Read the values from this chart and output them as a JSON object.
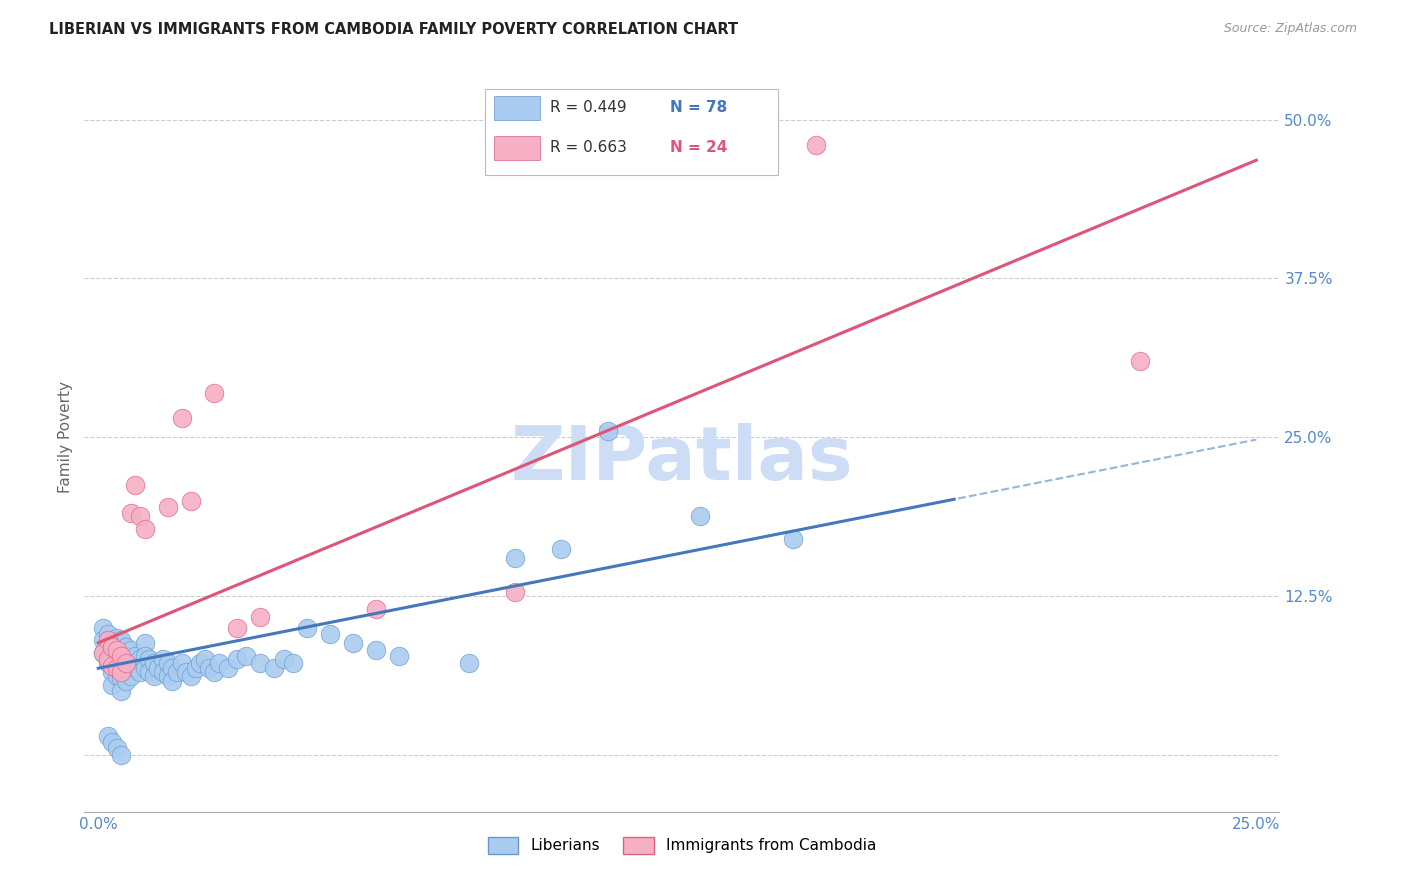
{
  "title": "LIBERIAN VS IMMIGRANTS FROM CAMBODIA FAMILY POVERTY CORRELATION CHART",
  "source_text": "Source: ZipAtlas.com",
  "ylabel": "Family Poverty",
  "xlim": [
    -0.003,
    0.255
  ],
  "ylim": [
    -0.045,
    0.545
  ],
  "xticks": [
    0.0,
    0.05,
    0.1,
    0.15,
    0.2,
    0.25
  ],
  "xticklabels": [
    "0.0%",
    "",
    "",
    "",
    "",
    "25.0%"
  ],
  "yticks": [
    0.0,
    0.125,
    0.25,
    0.375,
    0.5
  ],
  "yticklabels": [
    "",
    "12.5%",
    "25.0%",
    "37.5%",
    "50.0%"
  ],
  "blue_color": "#aaccf0",
  "pink_color": "#f5b0c5",
  "blue_edge_color": "#6699cc",
  "pink_edge_color": "#e06080",
  "blue_line_color": "#4477bb",
  "pink_line_color": "#dd5577",
  "watermark_color": "#ccddf5",
  "tick_color": "#5588cc",
  "legend_label_blue": "Liberians",
  "legend_label_pink": "Immigrants from Cambodia",
  "blue_line_intercept": 0.068,
  "blue_line_slope": 0.72,
  "pink_line_intercept": 0.088,
  "pink_line_slope": 1.52,
  "blue_scatter_x": [
    0.001,
    0.001,
    0.001,
    0.002,
    0.002,
    0.002,
    0.002,
    0.003,
    0.003,
    0.003,
    0.003,
    0.003,
    0.004,
    0.004,
    0.004,
    0.004,
    0.005,
    0.005,
    0.005,
    0.005,
    0.005,
    0.006,
    0.006,
    0.006,
    0.006,
    0.007,
    0.007,
    0.007,
    0.008,
    0.008,
    0.009,
    0.009,
    0.01,
    0.01,
    0.01,
    0.011,
    0.011,
    0.012,
    0.012,
    0.013,
    0.014,
    0.014,
    0.015,
    0.015,
    0.016,
    0.016,
    0.017,
    0.018,
    0.019,
    0.02,
    0.021,
    0.022,
    0.023,
    0.024,
    0.025,
    0.026,
    0.028,
    0.03,
    0.032,
    0.035,
    0.038,
    0.04,
    0.042,
    0.045,
    0.05,
    0.055,
    0.06,
    0.065,
    0.08,
    0.09,
    0.1,
    0.11,
    0.13,
    0.15,
    0.002,
    0.003,
    0.004,
    0.005
  ],
  "blue_scatter_y": [
    0.1,
    0.09,
    0.08,
    0.095,
    0.085,
    0.078,
    0.072,
    0.088,
    0.082,
    0.075,
    0.065,
    0.055,
    0.092,
    0.082,
    0.072,
    0.062,
    0.09,
    0.08,
    0.07,
    0.06,
    0.05,
    0.085,
    0.078,
    0.068,
    0.058,
    0.082,
    0.072,
    0.062,
    0.078,
    0.068,
    0.075,
    0.065,
    0.088,
    0.078,
    0.068,
    0.075,
    0.065,
    0.072,
    0.062,
    0.068,
    0.075,
    0.065,
    0.072,
    0.062,
    0.068,
    0.058,
    0.065,
    0.072,
    0.065,
    0.062,
    0.068,
    0.072,
    0.075,
    0.068,
    0.065,
    0.072,
    0.068,
    0.075,
    0.078,
    0.072,
    0.068,
    0.075,
    0.072,
    0.1,
    0.095,
    0.088,
    0.082,
    0.078,
    0.072,
    0.155,
    0.162,
    0.255,
    0.188,
    0.17,
    0.015,
    0.01,
    0.005,
    0.0
  ],
  "pink_scatter_x": [
    0.001,
    0.002,
    0.002,
    0.003,
    0.003,
    0.004,
    0.004,
    0.005,
    0.005,
    0.006,
    0.007,
    0.008,
    0.009,
    0.01,
    0.015,
    0.018,
    0.02,
    0.025,
    0.03,
    0.035,
    0.06,
    0.09,
    0.155,
    0.225
  ],
  "pink_scatter_y": [
    0.08,
    0.09,
    0.075,
    0.085,
    0.07,
    0.082,
    0.068,
    0.078,
    0.065,
    0.072,
    0.19,
    0.212,
    0.188,
    0.178,
    0.195,
    0.265,
    0.2,
    0.285,
    0.1,
    0.108,
    0.115,
    0.128,
    0.48,
    0.31
  ]
}
